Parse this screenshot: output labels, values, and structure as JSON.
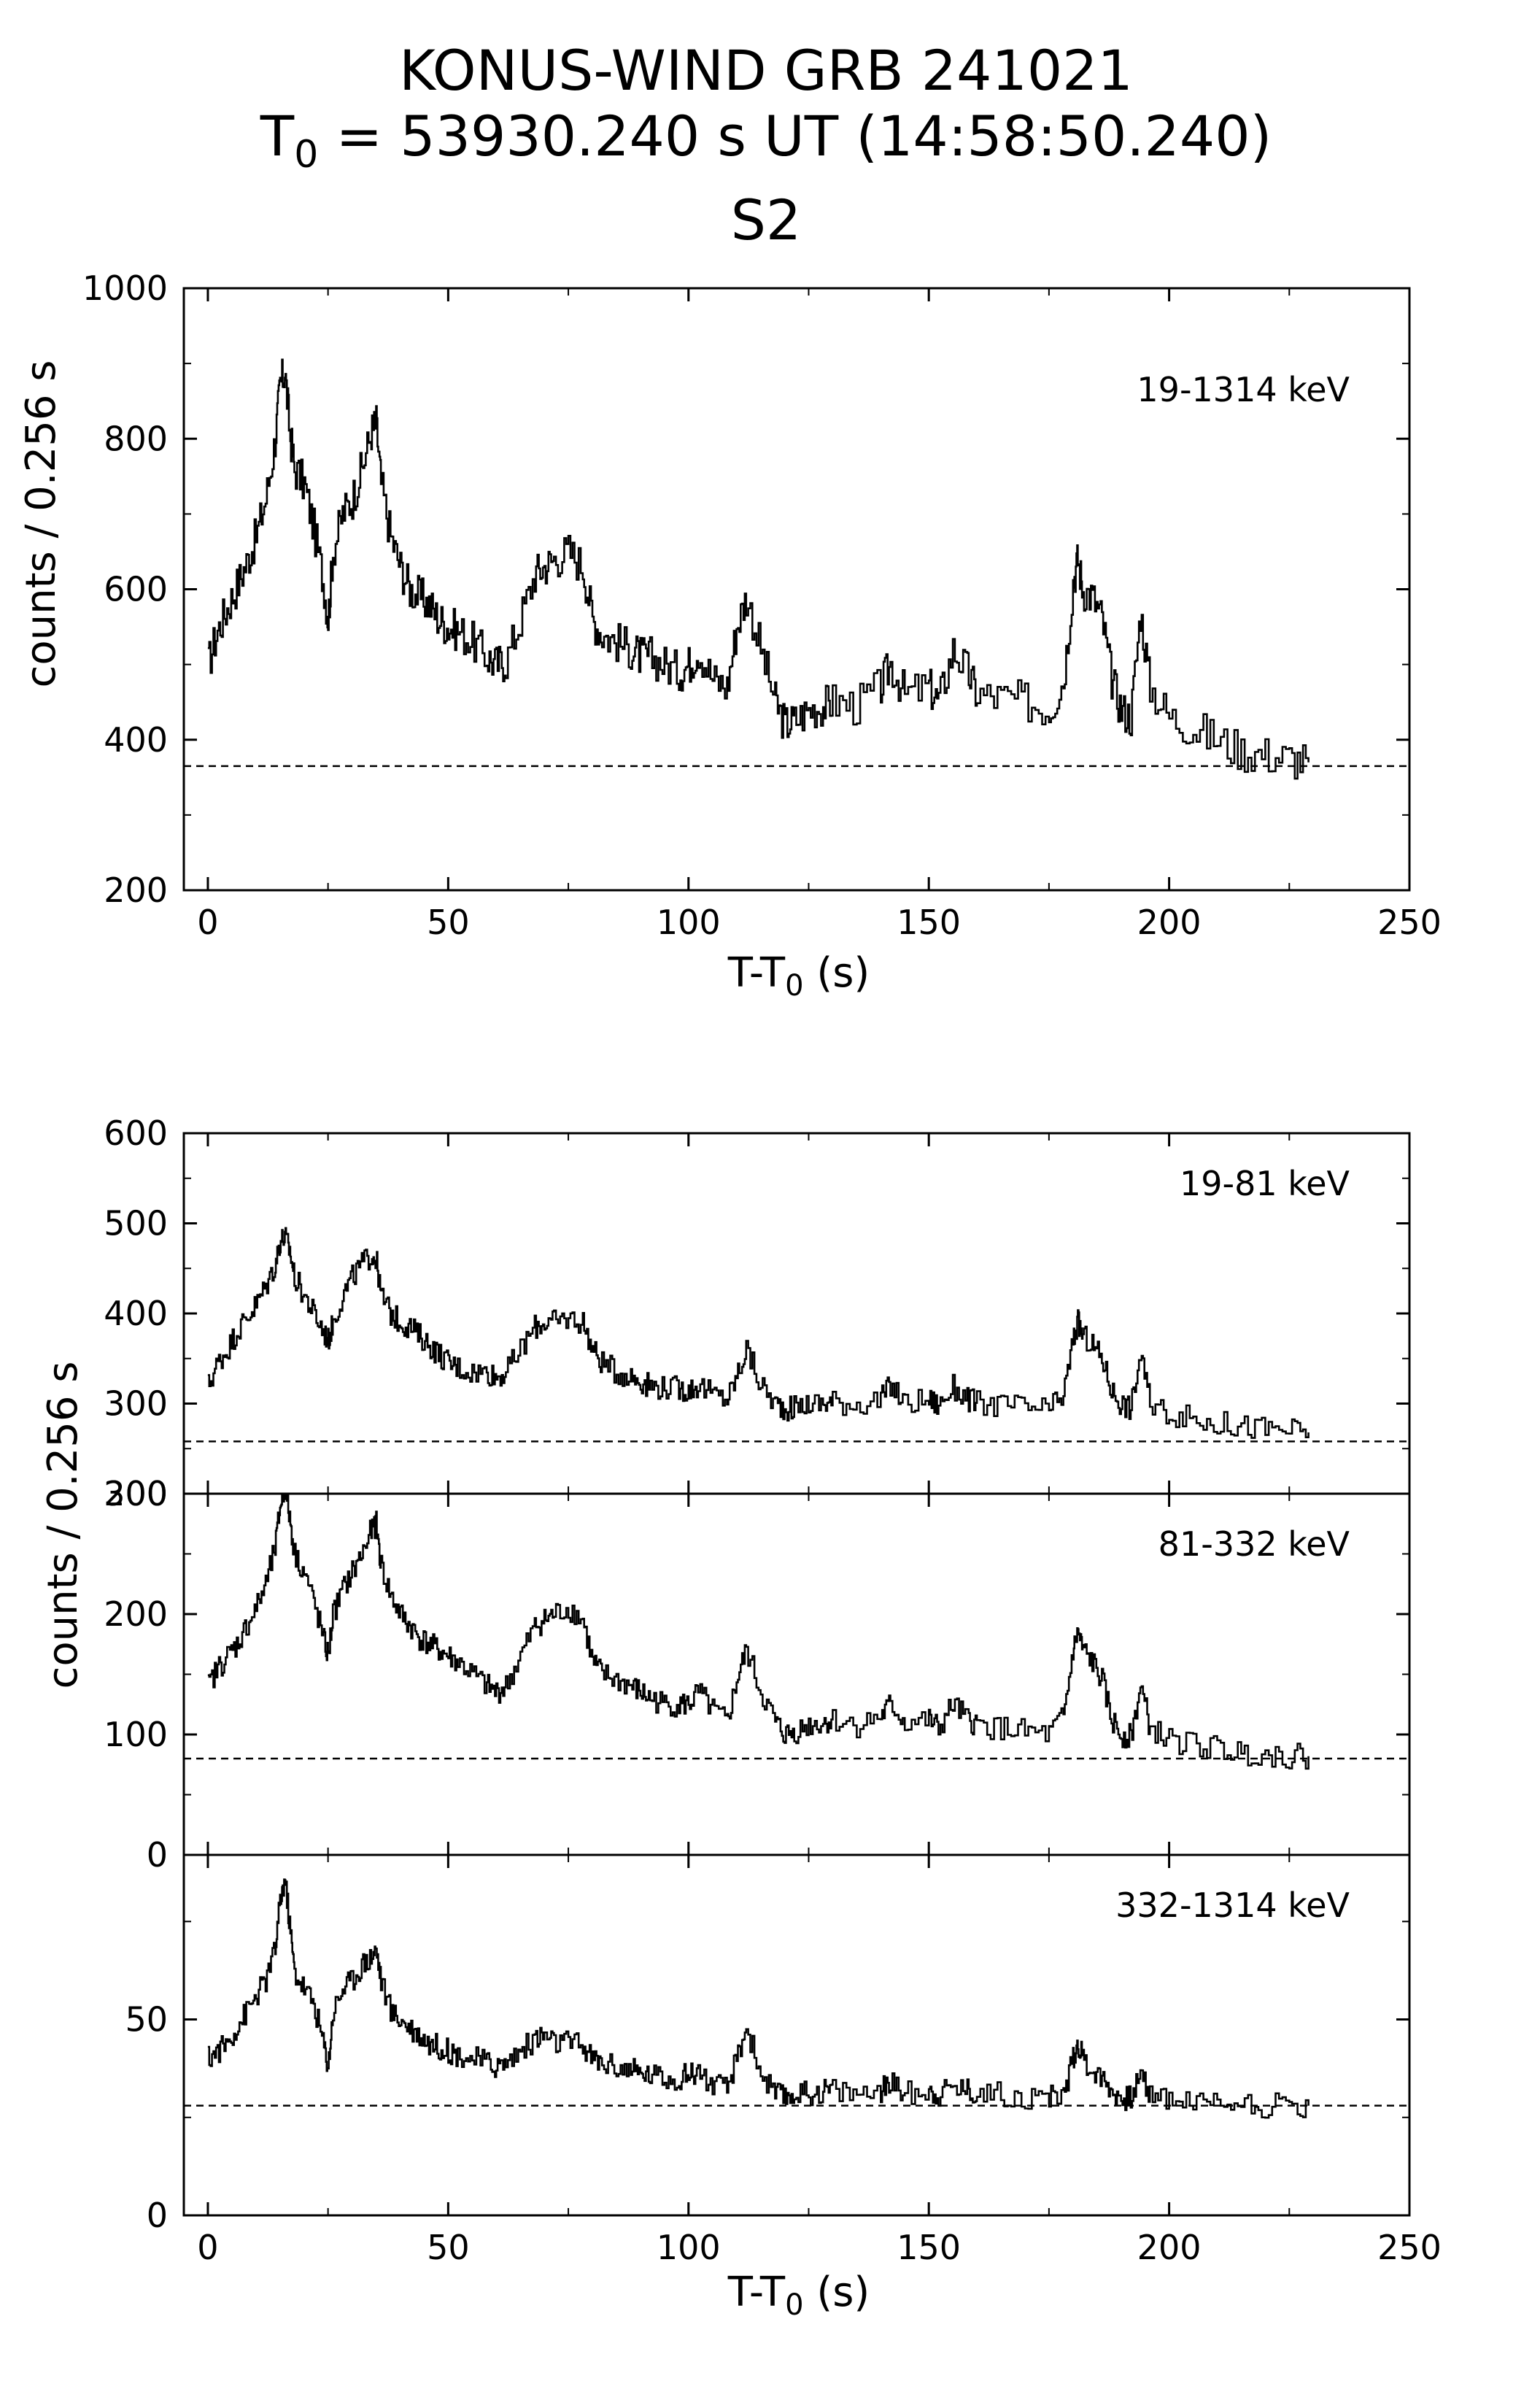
{
  "title": {
    "line1": "KONUS-WIND GRB 241021",
    "line2_prefix": "T",
    "line2_sub": "0",
    "line2_suffix": " = 53930.240 s UT (14:58:50.240)",
    "line3": "S2"
  },
  "chart_data": [
    {
      "type": "line",
      "name": "top",
      "band_label": "19-1314 keV",
      "ylabel": "counts / 0.256 s",
      "xlabel_main": "T-T",
      "xlabel_sub": "0",
      "xlabel_unit": " (s)",
      "xlim": [
        -5,
        250
      ],
      "ylim": [
        200,
        1000
      ],
      "x_ticks": [
        "0",
        "50",
        "100",
        "150",
        "200",
        "250"
      ],
      "y_ticks": [
        "200",
        "400",
        "600",
        "800",
        "1000"
      ],
      "background_level": 365,
      "series": [
        {
          "name": "19-1314 keV",
          "x": [
            0,
            2,
            4,
            6,
            8,
            10,
            12,
            14,
            15,
            16,
            17,
            18,
            20,
            22,
            24,
            25,
            26,
            28,
            30,
            32,
            34,
            35,
            36,
            38,
            40,
            42,
            44,
            46,
            48,
            50,
            52,
            55,
            58,
            60,
            62,
            65,
            68,
            70,
            72,
            75,
            78,
            80,
            82,
            85,
            88,
            90,
            92,
            95,
            98,
            100,
            102,
            105,
            108,
            110,
            112,
            115,
            118,
            120,
            122,
            125,
            128,
            130,
            135,
            140,
            142,
            145,
            150,
            152,
            155,
            158,
            160,
            165,
            170,
            175,
            178,
            180,
            181,
            182,
            184,
            186,
            188,
            190,
            192,
            194,
            196,
            200,
            205,
            210,
            215,
            220,
            225,
            229
          ],
          "values": [
            500,
            545,
            575,
            605,
            635,
            670,
            720,
            800,
            870,
            890,
            810,
            760,
            740,
            680,
            610,
            560,
            650,
            700,
            720,
            760,
            810,
            820,
            740,
            670,
            630,
            600,
            590,
            580,
            560,
            550,
            545,
            530,
            510,
            500,
            505,
            560,
            620,
            630,
            640,
            650,
            630,
            560,
            540,
            530,
            520,
            510,
            510,
            500,
            490,
            500,
            520,
            480,
            470,
            550,
            590,
            520,
            450,
            420,
            425,
            440,
            445,
            450,
            445,
            470,
            500,
            460,
            470,
            450,
            520,
            490,
            460,
            455,
            450,
            440,
            480,
            610,
            640,
            600,
            590,
            560,
            480,
            440,
            430,
            570,
            470,
            430,
            415,
            400,
            385,
            380,
            375,
            370
          ]
        }
      ]
    },
    {
      "type": "line",
      "name": "band-1",
      "band_label": "19-81 keV",
      "ylim": [
        200,
        600
      ],
      "y_ticks": [
        "200",
        "300",
        "400",
        "500",
        "600"
      ],
      "background_level": 258,
      "series": [
        {
          "name": "19-81 keV",
          "x": [
            0,
            2,
            4,
            6,
            8,
            10,
            12,
            14,
            15,
            16,
            17,
            18,
            20,
            22,
            24,
            25,
            26,
            28,
            30,
            32,
            34,
            35,
            36,
            38,
            40,
            42,
            44,
            46,
            48,
            50,
            52,
            55,
            58,
            60,
            62,
            65,
            68,
            70,
            72,
            75,
            78,
            80,
            82,
            85,
            88,
            90,
            92,
            95,
            98,
            100,
            102,
            105,
            108,
            110,
            112,
            115,
            118,
            120,
            122,
            125,
            128,
            130,
            135,
            140,
            142,
            145,
            150,
            152,
            155,
            158,
            160,
            165,
            170,
            175,
            178,
            180,
            181,
            182,
            184,
            186,
            188,
            190,
            192,
            194,
            196,
            200,
            205,
            210,
            215,
            220,
            225,
            229
          ],
          "values": [
            320,
            345,
            360,
            380,
            395,
            410,
            430,
            455,
            480,
            485,
            470,
            440,
            420,
            400,
            380,
            370,
            390,
            420,
            440,
            455,
            465,
            460,
            420,
            400,
            390,
            385,
            375,
            365,
            355,
            345,
            340,
            335,
            335,
            330,
            335,
            360,
            385,
            390,
            390,
            395,
            390,
            360,
            345,
            335,
            330,
            325,
            320,
            318,
            316,
            315,
            320,
            310,
            305,
            330,
            360,
            320,
            300,
            295,
            295,
            300,
            300,
            302,
            300,
            305,
            320,
            300,
            305,
            298,
            318,
            305,
            300,
            298,
            296,
            292,
            310,
            370,
            390,
            375,
            365,
            350,
            315,
            300,
            295,
            355,
            300,
            290,
            282,
            278,
            275,
            272,
            270,
            268
          ]
        }
      ]
    },
    {
      "type": "line",
      "name": "band-2",
      "band_label": "81-332 keV",
      "ylim": [
        0,
        300
      ],
      "y_ticks": [
        "0",
        "100",
        "200",
        "300"
      ],
      "y_tick_values": [
        0,
        100,
        200,
        300
      ],
      "background_level": 80,
      "series": [
        {
          "name": "81-332 keV",
          "x": [
            0,
            2,
            4,
            6,
            8,
            10,
            12,
            14,
            15,
            16,
            17,
            18,
            20,
            22,
            24,
            25,
            26,
            28,
            30,
            32,
            34,
            35,
            36,
            38,
            40,
            42,
            44,
            46,
            48,
            50,
            52,
            55,
            58,
            60,
            62,
            65,
            68,
            70,
            72,
            75,
            78,
            80,
            82,
            85,
            88,
            90,
            92,
            95,
            98,
            100,
            102,
            105,
            108,
            110,
            112,
            115,
            118,
            120,
            122,
            125,
            128,
            130,
            135,
            140,
            142,
            145,
            150,
            152,
            155,
            158,
            160,
            165,
            170,
            175,
            178,
            180,
            181,
            182,
            184,
            186,
            188,
            190,
            192,
            194,
            196,
            200,
            205,
            210,
            215,
            220,
            225,
            229
          ],
          "values": [
            140,
            155,
            165,
            175,
            190,
            205,
            225,
            255,
            290,
            305,
            280,
            250,
            235,
            210,
            180,
            165,
            200,
            220,
            235,
            250,
            270,
            275,
            240,
            215,
            200,
            190,
            180,
            175,
            170,
            165,
            160,
            150,
            140,
            135,
            140,
            165,
            190,
            195,
            200,
            205,
            195,
            160,
            150,
            145,
            140,
            135,
            130,
            125,
            125,
            125,
            135,
            120,
            110,
            145,
            170,
            135,
            110,
            100,
            102,
            108,
            110,
            112,
            108,
            115,
            125,
            110,
            112,
            105,
            125,
            112,
            108,
            105,
            102,
            100,
            115,
            170,
            185,
            170,
            160,
            145,
            112,
            100,
            98,
            140,
            105,
            95,
            92,
            88,
            85,
            84,
            82,
            82
          ]
        }
      ]
    },
    {
      "type": "line",
      "name": "band-3",
      "band_label": "332-1314 keV",
      "xlabel_main": "T-T",
      "xlabel_sub": "0",
      "xlabel_unit": " (s)",
      "xlim": [
        -5,
        250
      ],
      "ylim": [
        0,
        92
      ],
      "x_ticks": [
        "0",
        "50",
        "100",
        "150",
        "200",
        "250"
      ],
      "y_ticks": [
        "0",
        "50"
      ],
      "y_tick_values": [
        0,
        50
      ],
      "background_level": 28,
      "series": [
        {
          "name": "332-1314 keV",
          "x": [
            0,
            2,
            4,
            6,
            8,
            10,
            12,
            14,
            15,
            16,
            17,
            18,
            20,
            22,
            24,
            25,
            26,
            28,
            30,
            32,
            34,
            35,
            36,
            38,
            40,
            42,
            44,
            46,
            48,
            50,
            52,
            55,
            58,
            60,
            62,
            65,
            68,
            70,
            72,
            75,
            78,
            80,
            82,
            85,
            88,
            90,
            92,
            95,
            98,
            100,
            102,
            105,
            108,
            110,
            112,
            115,
            118,
            120,
            122,
            125,
            128,
            130,
            135,
            140,
            142,
            145,
            150,
            152,
            155,
            158,
            160,
            165,
            170,
            175,
            178,
            180,
            181,
            182,
            184,
            186,
            188,
            190,
            192,
            194,
            196,
            200,
            205,
            210,
            215,
            220,
            225,
            229
          ],
          "values": [
            40,
            42,
            44,
            48,
            52,
            56,
            60,
            68,
            80,
            86,
            74,
            62,
            58,
            54,
            44,
            38,
            52,
            58,
            60,
            64,
            66,
            68,
            60,
            52,
            50,
            48,
            46,
            44,
            43,
            42,
            41,
            40,
            39,
            38,
            39,
            42,
            45,
            46,
            44,
            44,
            43,
            40,
            39,
            38,
            37,
            36,
            36,
            35,
            35,
            36,
            37,
            33,
            32,
            40,
            48,
            36,
            31,
            30,
            31,
            31,
            32,
            32,
            31,
            32,
            34,
            31,
            32,
            31,
            33,
            32,
            31,
            31,
            30,
            30,
            31,
            40,
            44,
            40,
            37,
            35,
            32,
            30,
            30,
            36,
            31,
            30,
            29,
            29,
            29,
            28,
            28,
            28
          ]
        }
      ]
    }
  ]
}
